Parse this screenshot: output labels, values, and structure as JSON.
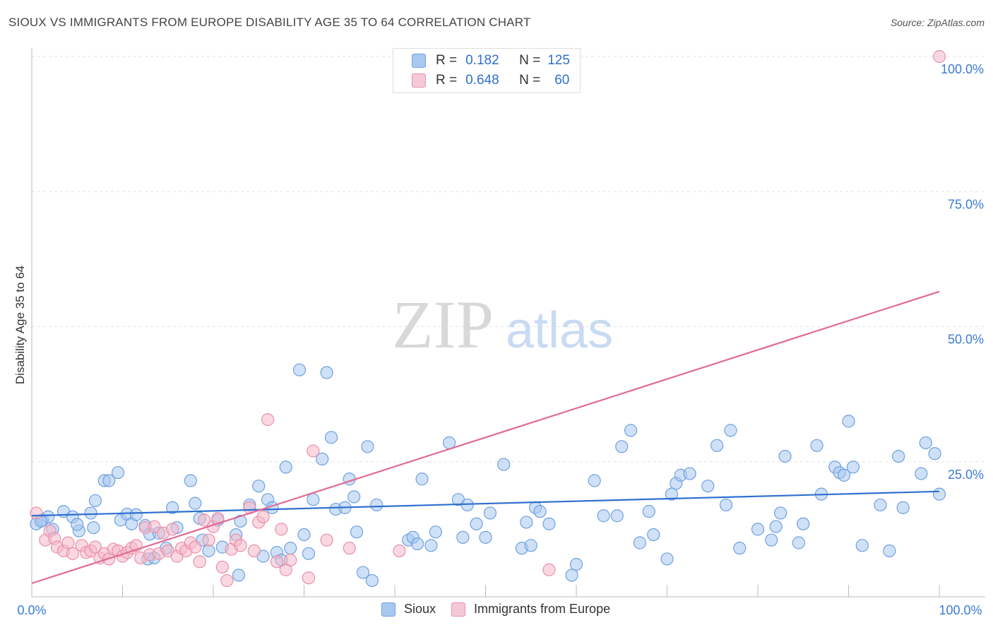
{
  "title": "SIOUX VS IMMIGRANTS FROM EUROPE DISABILITY AGE 35 TO 64 CORRELATION CHART",
  "source": "Source: ZipAtlas.com",
  "watermark": {
    "zip": "ZIP",
    "atlas": "atlas"
  },
  "legend_top": {
    "rows": [
      {
        "r_label": "R =",
        "r_value": "0.182",
        "n_label": "N =",
        "n_value": "125",
        "color": "#a8c8f0"
      },
      {
        "r_label": "R =",
        "r_value": "0.648",
        "n_label": "N =",
        "n_value": "60",
        "color": "#f5b8c8"
      }
    ]
  },
  "chart_data": {
    "type": "scatter",
    "title": "SIOUX VS IMMIGRANTS FROM EUROPE DISABILITY AGE 35 TO 64 CORRELATION CHART",
    "xlabel": "",
    "ylabel": "Disability Age 35 to 64",
    "xlim": [
      0,
      100
    ],
    "ylim": [
      0,
      100
    ],
    "x_tick_labels": [
      "0.0%",
      "100.0%"
    ],
    "y_tick_labels": [
      "25.0%",
      "50.0%",
      "75.0%",
      "100.0%"
    ],
    "y_ticks": [
      25,
      50,
      75,
      100
    ],
    "series": [
      {
        "name": "Sioux",
        "color": "#6fa0e0",
        "fill": "#a8c8f0",
        "trend": {
          "x": [
            0,
            100
          ],
          "y": [
            15.0,
            19.5
          ],
          "color": "#2f6fd0"
        },
        "points": [
          [
            0.5,
            13.5
          ],
          [
            1.2,
            14.2
          ],
          [
            2.3,
            12.5
          ],
          [
            1.8,
            14.8
          ],
          [
            3.5,
            15.8
          ],
          [
            4.5,
            14.8
          ],
          [
            5.2,
            12.2
          ],
          [
            5.0,
            13.4
          ],
          [
            6.5,
            15.5
          ],
          [
            7.0,
            17.8
          ],
          [
            8.0,
            21.5
          ],
          [
            8.5,
            21.5
          ],
          [
            9.5,
            23.0
          ],
          [
            9.8,
            14.2
          ],
          [
            10.5,
            15.3
          ],
          [
            11.0,
            13.5
          ],
          [
            11.5,
            15.2
          ],
          [
            12.5,
            13.2
          ],
          [
            13.0,
            11.6
          ],
          [
            14.0,
            11.8
          ],
          [
            12.8,
            7.0
          ],
          [
            13.5,
            7.2
          ],
          [
            14.8,
            9.0
          ],
          [
            15.5,
            16.5
          ],
          [
            16.0,
            12.8
          ],
          [
            17.5,
            21.5
          ],
          [
            18.0,
            17.3
          ],
          [
            18.5,
            14.5
          ],
          [
            18.8,
            10.5
          ],
          [
            19.5,
            8.5
          ],
          [
            20.5,
            14.2
          ],
          [
            21.0,
            9.2
          ],
          [
            22.5,
            11.5
          ],
          [
            22.8,
            4.0
          ],
          [
            23.0,
            14.0
          ],
          [
            24.0,
            17.0
          ],
          [
            25.0,
            20.5
          ],
          [
            25.5,
            7.5
          ],
          [
            26.0,
            18.0
          ],
          [
            26.5,
            16.5
          ],
          [
            27.0,
            8.2
          ],
          [
            27.5,
            6.8
          ],
          [
            28.0,
            24.0
          ],
          [
            28.5,
            9.0
          ],
          [
            29.5,
            42.0
          ],
          [
            30.0,
            11.5
          ],
          [
            30.5,
            8.0
          ],
          [
            31.0,
            18.0
          ],
          [
            32.0,
            25.5
          ],
          [
            32.5,
            41.5
          ],
          [
            33.0,
            29.5
          ],
          [
            33.5,
            16.2
          ],
          [
            34.5,
            16.5
          ],
          [
            35.0,
            21.8
          ],
          [
            35.5,
            18.5
          ],
          [
            35.8,
            12.0
          ],
          [
            36.5,
            4.5
          ],
          [
            37.0,
            27.8
          ],
          [
            37.5,
            3.0
          ],
          [
            38.0,
            17.0
          ],
          [
            41.5,
            10.5
          ],
          [
            42.0,
            11.0
          ],
          [
            42.5,
            9.8
          ],
          [
            43.0,
            21.8
          ],
          [
            44.0,
            9.5
          ],
          [
            44.5,
            12.0
          ],
          [
            46.0,
            28.5
          ],
          [
            47.0,
            18.0
          ],
          [
            47.5,
            11.0
          ],
          [
            48.0,
            17.0
          ],
          [
            49.0,
            13.5
          ],
          [
            50.0,
            11.0
          ],
          [
            50.5,
            15.5
          ],
          [
            52.0,
            24.5
          ],
          [
            54.0,
            9.0
          ],
          [
            54.5,
            13.8
          ],
          [
            55.0,
            9.5
          ],
          [
            55.5,
            16.5
          ],
          [
            56.0,
            15.8
          ],
          [
            57.0,
            13.5
          ],
          [
            59.5,
            4.0
          ],
          [
            60.0,
            6.0
          ],
          [
            62.0,
            21.5
          ],
          [
            63.0,
            15.0
          ],
          [
            64.5,
            15.0
          ],
          [
            65.0,
            27.8
          ],
          [
            66.0,
            30.8
          ],
          [
            67.0,
            10.0
          ],
          [
            68.0,
            15.8
          ],
          [
            68.5,
            11.5
          ],
          [
            70.0,
            7.0
          ],
          [
            70.5,
            19.0
          ],
          [
            71.0,
            21.0
          ],
          [
            71.5,
            22.5
          ],
          [
            72.5,
            22.8
          ],
          [
            74.5,
            20.5
          ],
          [
            75.5,
            28.0
          ],
          [
            76.5,
            17.0
          ],
          [
            77.0,
            30.8
          ],
          [
            78.0,
            9.0
          ],
          [
            80.0,
            12.5
          ],
          [
            81.5,
            10.5
          ],
          [
            82.0,
            13.0
          ],
          [
            82.5,
            15.5
          ],
          [
            83.0,
            26.0
          ],
          [
            84.5,
            10.0
          ],
          [
            85.0,
            13.5
          ],
          [
            86.5,
            28.0
          ],
          [
            87.0,
            19.0
          ],
          [
            88.5,
            24.0
          ],
          [
            89.0,
            23.0
          ],
          [
            89.5,
            22.5
          ],
          [
            90.0,
            32.5
          ],
          [
            90.5,
            24.0
          ],
          [
            91.5,
            9.5
          ],
          [
            93.5,
            17.0
          ],
          [
            94.5,
            8.5
          ],
          [
            95.5,
            26.0
          ],
          [
            96.0,
            16.5
          ],
          [
            98.0,
            22.8
          ],
          [
            98.5,
            28.5
          ],
          [
            99.5,
            26.5
          ],
          [
            100.0,
            19.0
          ],
          [
            1.0,
            14.0
          ],
          [
            6.8,
            12.8
          ]
        ]
      },
      {
        "name": "Immigrants from Europe",
        "color": "#e890a8",
        "fill": "#f5b8c8",
        "trend": {
          "x": [
            0,
            100
          ],
          "y": [
            2.5,
            56.5
          ],
          "color": "#e06a95"
        },
        "points": [
          [
            0.5,
            15.5
          ],
          [
            1.5,
            10.5
          ],
          [
            2.0,
            12.2
          ],
          [
            2.5,
            10.8
          ],
          [
            2.8,
            9.2
          ],
          [
            3.5,
            8.5
          ],
          [
            4.0,
            10.0
          ],
          [
            4.5,
            8.0
          ],
          [
            5.5,
            9.5
          ],
          [
            6.0,
            8.2
          ],
          [
            6.5,
            8.5
          ],
          [
            7.0,
            9.2
          ],
          [
            7.5,
            7.2
          ],
          [
            8.0,
            8.0
          ],
          [
            8.5,
            7.0
          ],
          [
            9.0,
            8.8
          ],
          [
            9.5,
            8.5
          ],
          [
            10.0,
            7.5
          ],
          [
            10.5,
            8.2
          ],
          [
            11.0,
            9.0
          ],
          [
            11.5,
            9.5
          ],
          [
            12.0,
            7.2
          ],
          [
            12.5,
            12.8
          ],
          [
            13.0,
            7.8
          ],
          [
            13.5,
            13.0
          ],
          [
            14.0,
            8.0
          ],
          [
            14.5,
            11.8
          ],
          [
            15.0,
            8.5
          ],
          [
            15.5,
            12.5
          ],
          [
            16.0,
            7.5
          ],
          [
            16.5,
            9.0
          ],
          [
            17.0,
            8.5
          ],
          [
            17.5,
            10.0
          ],
          [
            18.0,
            9.2
          ],
          [
            18.5,
            6.5
          ],
          [
            19.0,
            14.2
          ],
          [
            19.5,
            10.5
          ],
          [
            20.0,
            13.0
          ],
          [
            20.5,
            14.5
          ],
          [
            21.0,
            5.5
          ],
          [
            21.5,
            3.0
          ],
          [
            22.0,
            8.8
          ],
          [
            22.5,
            10.5
          ],
          [
            23.0,
            9.5
          ],
          [
            24.0,
            16.5
          ],
          [
            24.5,
            8.5
          ],
          [
            25.0,
            13.8
          ],
          [
            25.5,
            14.8
          ],
          [
            26.0,
            32.8
          ],
          [
            27.0,
            6.5
          ],
          [
            27.5,
            12.5
          ],
          [
            28.0,
            5.0
          ],
          [
            28.5,
            6.8
          ],
          [
            30.5,
            3.5
          ],
          [
            31.0,
            27.0
          ],
          [
            32.5,
            10.5
          ],
          [
            35.0,
            9.0
          ],
          [
            40.5,
            8.5
          ],
          [
            57.0,
            5.0
          ],
          [
            100.0,
            100.0
          ]
        ]
      }
    ]
  },
  "bottom_legend": [
    {
      "label": "Sioux",
      "color": "#a8c8f0"
    },
    {
      "label": "Immigrants from Europe",
      "color": "#f5b8c8"
    }
  ]
}
